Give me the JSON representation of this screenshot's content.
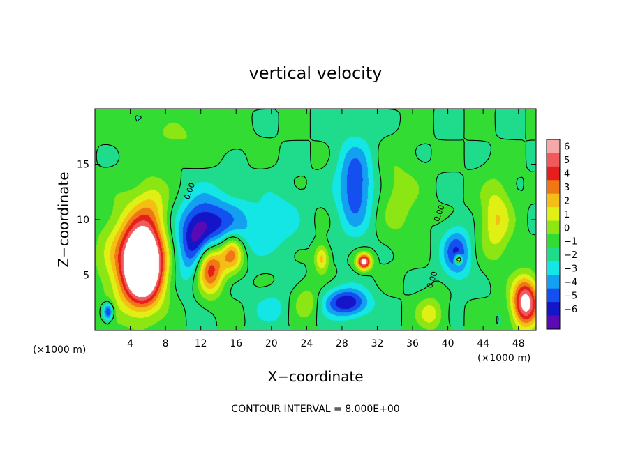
{
  "chart_data": {
    "type": "heatmap",
    "title": "vertical velocity",
    "xlabel": "X−coordinate",
    "ylabel": "Z−coordinate",
    "x_unit_left": "(×1000 m)",
    "x_unit_right": "(×1000 m)",
    "xlim": [
      0,
      50
    ],
    "ylim": [
      0,
      20
    ],
    "xticks": [
      4,
      8,
      12,
      16,
      20,
      24,
      28,
      32,
      36,
      40,
      44,
      48
    ],
    "yticks": [
      5,
      10,
      15
    ],
    "contour_interval_text": "CONTOUR INTERVAL = 8.000E+00",
    "contour_labels": [
      {
        "text": "0.00",
        "x": 11.0,
        "y": 12.5
      },
      {
        "text": "0.00",
        "x": 38.5,
        "y": 4.5
      },
      {
        "text": "0.00",
        "x": 39.3,
        "y": 10.5
      }
    ],
    "colorbar": {
      "levels": [
        "6",
        "5",
        "4",
        "3",
        "2",
        "1",
        "0",
        "−1",
        "−2",
        "−3",
        "−4",
        "−5",
        "−6"
      ],
      "range": [
        -6,
        6
      ],
      "colors": [
        "#f4a8a8",
        "#f05a5a",
        "#e61e1e",
        "#f07814",
        "#f5be14",
        "#e1f014",
        "#8ce614",
        "#32dc32",
        "#1edc8c",
        "#14e6e6",
        "#14a0f0",
        "#1450f0",
        "#1414c8",
        "#5a0ab4"
      ]
    },
    "features": [
      {
        "x": 5.5,
        "z": 6.0,
        "sx": 2.2,
        "sz": 3.4,
        "w": 12.0
      },
      {
        "x": 3.8,
        "z": 6.5,
        "sx": 3.4,
        "sz": 5.0,
        "w": 3.0
      },
      {
        "x": 6.5,
        "z": 11.5,
        "sx": 2.0,
        "sz": 2.5,
        "w": 2.0
      },
      {
        "x": 1.5,
        "z": 1.7,
        "sx": 0.6,
        "sz": 0.8,
        "w": -5.0
      },
      {
        "x": 13.0,
        "z": 6.0,
        "sx": 1.6,
        "sz": 2.5,
        "w": 9.0
      },
      {
        "x": 15.5,
        "z": 7.0,
        "sx": 1.4,
        "sz": 1.8,
        "w": 6.0
      },
      {
        "x": 12.0,
        "z": 8.0,
        "sx": 2.5,
        "sz": 3.5,
        "w": -6.0
      },
      {
        "x": 15.0,
        "z": 9.0,
        "sx": 3.5,
        "sz": 3.0,
        "w": -3.0
      },
      {
        "x": 30.5,
        "z": 6.2,
        "sx": 0.8,
        "sz": 0.7,
        "w": 8.0
      },
      {
        "x": 29.5,
        "z": 13.0,
        "sx": 2.0,
        "sz": 4.0,
        "w": -4.0
      },
      {
        "x": 28.5,
        "z": 2.5,
        "sx": 2.5,
        "sz": 1.3,
        "w": -5.0
      },
      {
        "x": 25.7,
        "z": 6.5,
        "sx": 0.8,
        "sz": 1.2,
        "w": 3.5
      },
      {
        "x": 41.2,
        "z": 6.4,
        "sx": 0.4,
        "sz": 0.4,
        "w": 6.0
      },
      {
        "x": 41.0,
        "z": 7.0,
        "sx": 1.6,
        "sz": 2.2,
        "w": -4.0
      },
      {
        "x": 48.8,
        "z": 2.5,
        "sx": 1.5,
        "sz": 2.2,
        "w": 8.0
      },
      {
        "x": 45.5,
        "z": 10.0,
        "sx": 1.8,
        "sz": 3.5,
        "w": 3.0
      },
      {
        "x": 38.0,
        "z": 1.5,
        "sx": 1.5,
        "sz": 1.5,
        "w": 2.5
      },
      {
        "x": 24.0,
        "z": 2.5,
        "sx": 1.5,
        "sz": 1.5,
        "w": 2.0
      },
      {
        "x": 21.0,
        "z": 10.0,
        "sx": 2.5,
        "sz": 3.0,
        "w": -1.5
      },
      {
        "x": 34.5,
        "z": 12.0,
        "sx": 2.5,
        "sz": 4.0,
        "w": 1.5
      },
      {
        "x": 10.0,
        "z": 17.5,
        "sx": 6.0,
        "sz": 2.0,
        "w": 1.0
      },
      {
        "x": 20.0,
        "z": 2.0,
        "sx": 2.0,
        "sz": 1.5,
        "w": -1.5
      }
    ]
  }
}
